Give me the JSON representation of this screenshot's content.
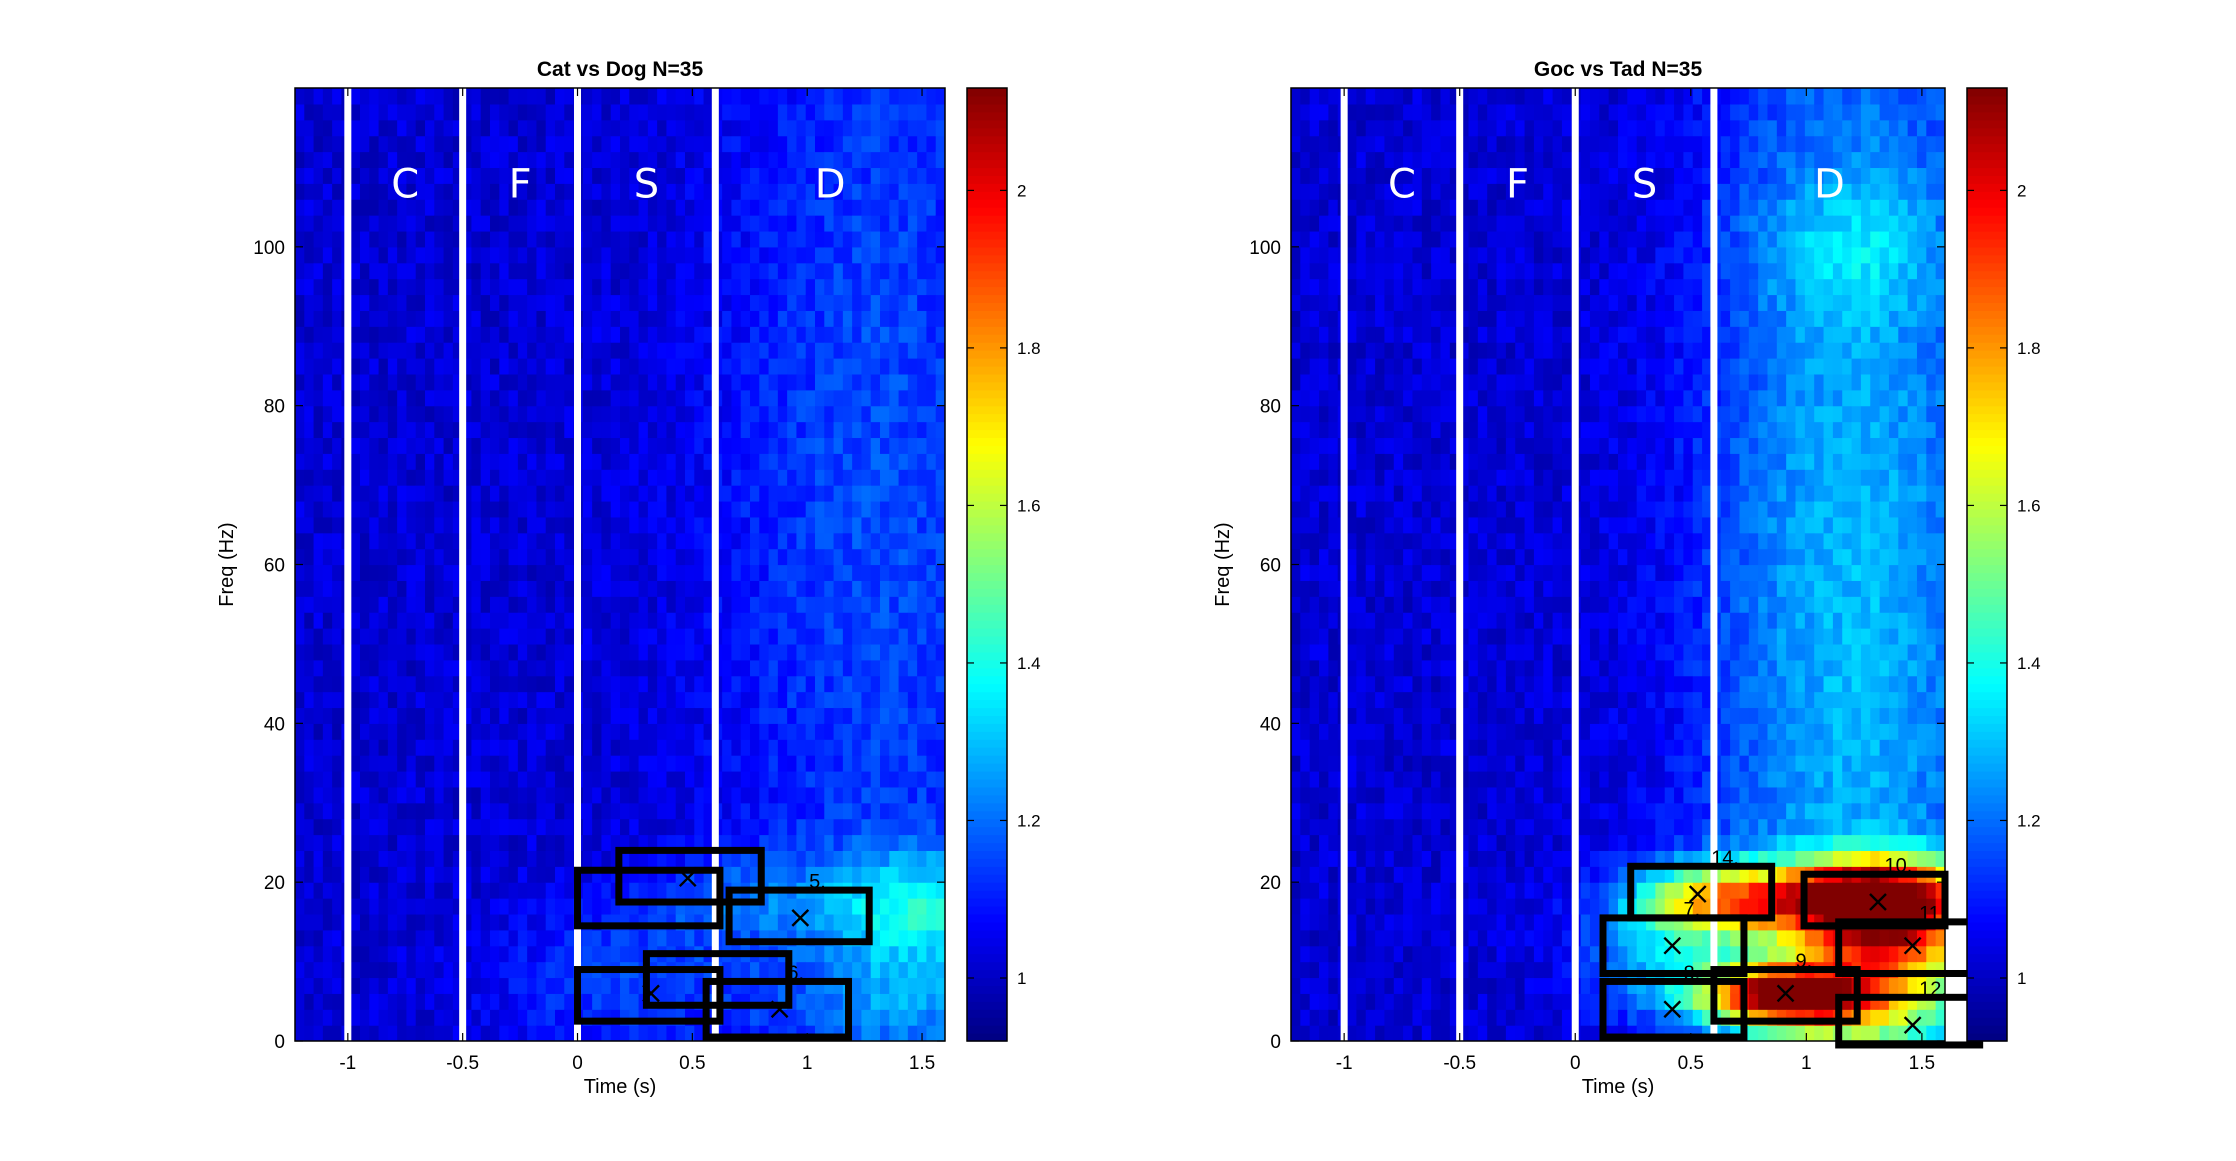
{
  "chart_data": [
    {
      "type": "heatmap",
      "title": "Cat vs Dog N=35",
      "xlabel": "Time (s)",
      "ylabel": "Freq (Hz)",
      "xlim": [
        -1.23,
        1.6
      ],
      "ylim": [
        0,
        120
      ],
      "xticks": [
        -1,
        -0.5,
        0,
        0.5,
        1,
        1.5
      ],
      "yticks": [
        0,
        20,
        40,
        60,
        80,
        100
      ],
      "colorbar": {
        "range": [
          0.92,
          2.13
        ],
        "ticks": [
          1,
          1.2,
          1.4,
          1.6,
          1.8,
          2
        ]
      },
      "phase_lines": [
        -1,
        -0.5,
        0,
        0.6
      ],
      "phase_labels": [
        {
          "text": "C",
          "x": -0.75
        },
        {
          "text": "F",
          "x": -0.25
        },
        {
          "text": "S",
          "x": 0.3
        },
        {
          "text": "D",
          "x": 1.1
        }
      ],
      "phase_label_y": 108,
      "hotspots": [
        {
          "t": 1.5,
          "f": 17,
          "st": 0.3,
          "sf": 5,
          "a": 0.28
        },
        {
          "t": 0.7,
          "f": 18,
          "st": 0.35,
          "sf": 4,
          "a": 0.12
        },
        {
          "t": 0.2,
          "f": 7,
          "st": 0.4,
          "sf": 7,
          "a": 0.12
        },
        {
          "t": 1.2,
          "f": 70,
          "st": 0.5,
          "sf": 45,
          "a": 0.08
        },
        {
          "t": 1.4,
          "f": 5,
          "st": 0.35,
          "sf": 5,
          "a": 0.15
        }
      ],
      "rois": [
        {
          "label": "",
          "t0": 0.0,
          "t1": 0.62,
          "f0": 14.5,
          "f1": 21.5,
          "mark": null
        },
        {
          "label": "",
          "t0": 0.18,
          "t1": 0.8,
          "f0": 17.5,
          "f1": 24,
          "mark": [
            0.48,
            20.5
          ]
        },
        {
          "label": "5.",
          "t0": 0.66,
          "t1": 1.27,
          "f0": 12.5,
          "f1": 19,
          "mark": [
            0.97,
            15.5
          ]
        },
        {
          "label": "",
          "t0": 0.3,
          "t1": 0.92,
          "f0": 4.5,
          "f1": 11,
          "mark": null
        },
        {
          "label": "",
          "t0": 0.0,
          "t1": 0.62,
          "f0": 2.5,
          "f1": 9,
          "mark": [
            0.32,
            6
          ]
        },
        {
          "label": "6.",
          "t0": 0.56,
          "t1": 1.18,
          "f0": 0.5,
          "f1": 7.5,
          "mark": [
            0.88,
            4
          ]
        }
      ]
    },
    {
      "type": "heatmap",
      "title": "Goc vs Tad N=35",
      "xlabel": "Time (s)",
      "ylabel": "Freq (Hz)",
      "xlim": [
        -1.23,
        1.6
      ],
      "ylim": [
        0,
        120
      ],
      "xticks": [
        -1,
        -0.5,
        0,
        0.5,
        1,
        1.5
      ],
      "yticks": [
        0,
        20,
        40,
        60,
        80,
        100
      ],
      "colorbar": {
        "range": [
          0.92,
          2.13
        ],
        "ticks": [
          1,
          1.2,
          1.4,
          1.6,
          1.8,
          2
        ]
      },
      "phase_lines": [
        -1,
        -0.5,
        0,
        0.6
      ],
      "phase_labels": [
        {
          "text": "C",
          "x": -0.75
        },
        {
          "text": "F",
          "x": -0.25
        },
        {
          "text": "S",
          "x": 0.3
        },
        {
          "text": "D",
          "x": 1.1
        }
      ],
      "phase_label_y": 108,
      "hotspots": [
        {
          "t": 1.3,
          "f": 18,
          "st": 0.28,
          "sf": 3.5,
          "a": 1.15
        },
        {
          "t": 0.9,
          "f": 6,
          "st": 0.25,
          "sf": 2.5,
          "a": 0.9
        },
        {
          "t": 1.35,
          "f": 11,
          "st": 0.3,
          "sf": 4,
          "a": 0.55
        },
        {
          "t": 0.65,
          "f": 18,
          "st": 0.25,
          "sf": 3,
          "a": 0.6
        },
        {
          "t": 1.2,
          "f": 3,
          "st": 0.35,
          "sf": 3,
          "a": 0.35
        },
        {
          "t": 1.15,
          "f": 55,
          "st": 0.45,
          "sf": 60,
          "a": 0.22
        },
        {
          "t": 0.4,
          "f": 12,
          "st": 0.25,
          "sf": 6,
          "a": 0.25
        },
        {
          "t": 1.2,
          "f": 100,
          "st": 0.3,
          "sf": 6,
          "a": 0.12
        }
      ],
      "rois": [
        {
          "label": "14.",
          "t0": 0.24,
          "t1": 0.85,
          "f0": 15.5,
          "f1": 22,
          "mark": [
            0.53,
            18.5
          ]
        },
        {
          "label": "10.",
          "t0": 0.99,
          "t1": 1.6,
          "f0": 14.5,
          "f1": 21,
          "mark": [
            1.31,
            17.5
          ]
        },
        {
          "label": "7.",
          "t0": 0.12,
          "t1": 0.73,
          "f0": 8.5,
          "f1": 15.5,
          "mark": [
            0.42,
            12
          ]
        },
        {
          "label": "11.",
          "t0": 1.14,
          "t1": 1.75,
          "f0": 8.5,
          "f1": 15,
          "mark": [
            1.46,
            12
          ]
        },
        {
          "label": "9.",
          "t0": 0.6,
          "t1": 1.22,
          "f0": 2.5,
          "f1": 9,
          "mark": [
            0.91,
            6
          ]
        },
        {
          "label": "8.",
          "t0": 0.12,
          "t1": 0.73,
          "f0": 0.5,
          "f1": 7.5,
          "mark": [
            0.42,
            4
          ]
        },
        {
          "label": "12.",
          "t0": 1.14,
          "t1": 1.75,
          "f0": -0.5,
          "f1": 5.5,
          "mark": [
            1.46,
            2
          ]
        }
      ]
    }
  ]
}
